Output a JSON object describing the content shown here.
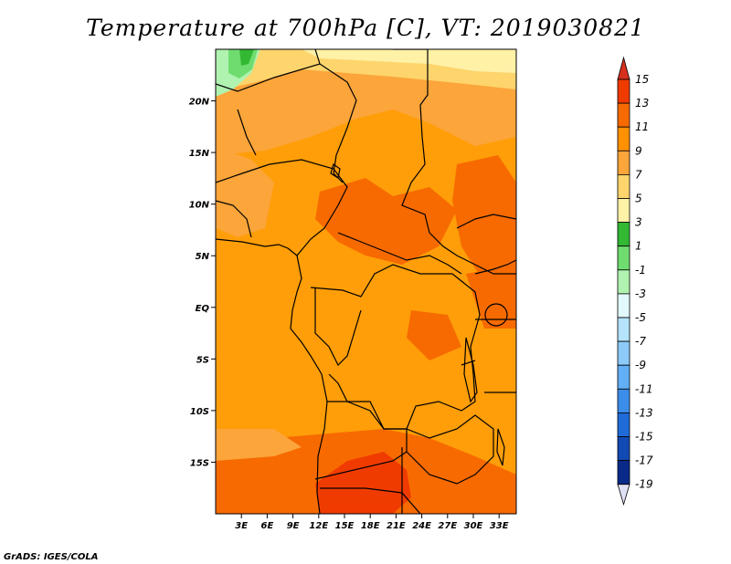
{
  "title": "Temperature at 700hPa [C], VT: 2019030821",
  "footer": "GrADS: IGES/COLA",
  "map": {
    "x_ticks": [
      "3E",
      "6E",
      "9E",
      "12E",
      "15E",
      "18E",
      "21E",
      "24E",
      "27E",
      "30E",
      "33E"
    ],
    "y_ticks": [
      "20N",
      "15N",
      "10N",
      "5N",
      "EQ",
      "5S",
      "10S",
      "15S"
    ],
    "lon_range": [
      0,
      35
    ],
    "lat_range": [
      -20,
      25
    ]
  },
  "colorbar": {
    "labels": [
      "15",
      "13",
      "11",
      "9",
      "7",
      "5",
      "3",
      "1",
      "-1",
      "-3",
      "-5",
      "-7",
      "-9",
      "-11",
      "-13",
      "-15",
      "-17",
      "-19"
    ],
    "colors": {
      "gt15": "#d7301f",
      "13_15": "#f03b00",
      "11_13": "#f76a00",
      "9_11": "#ff9100",
      "7_9": "#fba53b",
      "5_7": "#fdd56c",
      "3_5": "#fff1a6",
      "1_3": "#32b832",
      "-1_1": "#6fdc6f",
      "-3_-1": "#b0f2b0",
      "-5_-3": "#e1f9fb",
      "-7_-5": "#b5e3fb",
      "-9_-7": "#8ccaf9",
      "-11_-9": "#62aff5",
      "-13_-11": "#3b8de9",
      "-15_-13": "#1f6bd8",
      "-17_-15": "#124ab3",
      "-19_-17": "#0a2a8a",
      "lt-19": "#000060",
      "lowest_arrow": "#e0e0f5"
    }
  },
  "colors": {
    "ocean": "#ff9e08",
    "land_base": "#fba53b",
    "warm": "#f76a00",
    "hot": "#f03b00",
    "yellow": "#fdd56c",
    "light_yellow": "#fff1a6",
    "green": "#32b832",
    "light_green": "#6fdc6f"
  }
}
